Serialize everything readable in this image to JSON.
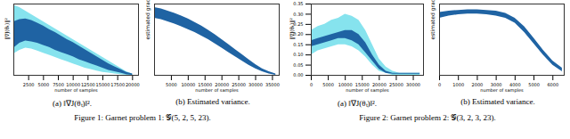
{
  "chart_data": [
    {
      "type": "line",
      "title": "(a) ‖∇J(θₜ)‖².",
      "ylabel": "‖∇J(θₜ)‖²",
      "xlabel": "number of samples",
      "x": [
        0,
        1000,
        2000,
        3000,
        4000,
        5000,
        6000,
        7000,
        8000,
        9000,
        10000,
        11000,
        12000,
        13000,
        14000,
        15000,
        16000,
        17000,
        18000,
        19000,
        20000
      ],
      "xlim": [
        0,
        21000
      ],
      "xticks": [
        2500,
        5000,
        7500,
        10000,
        12500,
        15000,
        17500,
        20000
      ],
      "ylim": [
        0,
        1
      ],
      "tick_labels": "x",
      "series": [
        {
          "type": "area",
          "color": "#86e3ee",
          "upper": [
            0.98,
            0.95,
            0.9,
            0.85,
            0.8,
            0.75,
            0.7,
            0.65,
            0.6,
            0.55,
            0.5,
            0.45,
            0.4,
            0.35,
            0.3,
            0.25,
            0.2,
            0.15,
            0.1,
            0.05,
            0.02
          ],
          "lower": [
            0.3,
            0.35,
            0.38,
            0.37,
            0.34,
            0.31,
            0.28,
            0.25,
            0.22,
            0.19,
            0.16,
            0.13,
            0.1,
            0.08,
            0.06,
            0.04,
            0.03,
            0.02,
            0.01,
            0,
            0
          ]
        },
        {
          "type": "area",
          "color": "#1f63a3",
          "upper": [
            0.75,
            0.78,
            0.79,
            0.77,
            0.73,
            0.69,
            0.64,
            0.6,
            0.55,
            0.5,
            0.46,
            0.41,
            0.36,
            0.31,
            0.26,
            0.21,
            0.16,
            0.12,
            0.08,
            0.04,
            0.02
          ],
          "lower": [
            0.38,
            0.45,
            0.48,
            0.47,
            0.45,
            0.42,
            0.39,
            0.35,
            0.32,
            0.29,
            0.26,
            0.22,
            0.19,
            0.16,
            0.13,
            0.1,
            0.07,
            0.05,
            0.03,
            0.01,
            0
          ]
        }
      ]
    },
    {
      "type": "line",
      "title": "(b) Estimated variance.",
      "ylabel": "estimated gradient variance",
      "xlabel": "number of samples",
      "x": [
        0,
        2000,
        4000,
        6000,
        8000,
        10000,
        12000,
        14000,
        16000,
        18000,
        20000,
        22000,
        24000,
        26000,
        28000,
        30000,
        32000,
        34000,
        36000
      ],
      "xlim": [
        0,
        37000
      ],
      "xticks": [
        5000,
        10000,
        15000,
        20000,
        25000,
        30000,
        35000
      ],
      "ylim": [
        0,
        1
      ],
      "tick_labels": "x",
      "series": [
        {
          "type": "area",
          "color": "#1f63a3",
          "upper": [
            0.95,
            0.93,
            0.9,
            0.87,
            0.83,
            0.79,
            0.74,
            0.69,
            0.63,
            0.57,
            0.5,
            0.43,
            0.36,
            0.29,
            0.22,
            0.15,
            0.09,
            0.05,
            0.02
          ],
          "lower": [
            0.8,
            0.78,
            0.75,
            0.72,
            0.68,
            0.64,
            0.6,
            0.55,
            0.5,
            0.44,
            0.38,
            0.32,
            0.26,
            0.2,
            0.14,
            0.09,
            0.05,
            0.02,
            0
          ]
        }
      ]
    },
    {
      "type": "line",
      "title": "(a) ‖∇J(θₜ)‖².",
      "ylabel": "‖∇J(θₜ)‖²",
      "xlabel": "number of samples",
      "x": [
        0,
        2000,
        4000,
        6000,
        8000,
        10000,
        12000,
        14000,
        16000,
        18000,
        20000,
        22000,
        24000,
        26000,
        28000,
        30000,
        32000
      ],
      "xlim": [
        0,
        33000
      ],
      "xticks": [
        0,
        5000,
        10000,
        15000,
        20000,
        25000,
        30000
      ],
      "ylim": [
        0,
        0.35
      ],
      "yticks": [
        {
          "value": 0,
          "label": "0.00"
        },
        0.05,
        {
          "value": 0.1,
          "label": "0.10"
        },
        0.15,
        {
          "value": 0.2,
          "label": "0.20"
        },
        0.25,
        {
          "value": 0.3,
          "label": "0.30"
        },
        0.35
      ],
      "series": [
        {
          "type": "area",
          "color": "#86e3ee",
          "upper": [
            0.22,
            0.24,
            0.25,
            0.27,
            0.28,
            0.3,
            0.29,
            0.27,
            0.22,
            0.15,
            0.08,
            0.04,
            0.02,
            0.01,
            0.01,
            0.01,
            0.01
          ],
          "lower": [
            0.1,
            0.12,
            0.13,
            0.14,
            0.15,
            0.15,
            0.14,
            0.12,
            0.09,
            0.05,
            0.02,
            0.01,
            0,
            0,
            0,
            0,
            0
          ]
        },
        {
          "type": "area",
          "color": "#1f63a3",
          "upper": [
            0.17,
            0.18,
            0.19,
            0.2,
            0.21,
            0.22,
            0.22,
            0.2,
            0.16,
            0.1,
            0.05,
            0.02,
            0.01,
            0.01,
            0.01,
            0.01,
            0.01
          ],
          "lower": [
            0.14,
            0.15,
            0.16,
            0.17,
            0.18,
            0.18,
            0.17,
            0.15,
            0.11,
            0.07,
            0.03,
            0.01,
            0.005,
            0.005,
            0.005,
            0.005,
            0.005
          ]
        }
      ]
    },
    {
      "type": "line",
      "title": "(b) Estimated variance.",
      "ylabel": "estimated gradient variance",
      "xlabel": "number of samples",
      "x": [
        0,
        500,
        1000,
        1500,
        2000,
        2500,
        3000,
        3500,
        4000,
        4500,
        5000,
        5500,
        6000,
        6500
      ],
      "xlim": [
        0,
        6600
      ],
      "xticks": [
        0,
        1000,
        2000,
        3000,
        4000,
        5000,
        6000
      ],
      "ylim": [
        0,
        1
      ],
      "tick_labels": "x",
      "series": [
        {
          "type": "area",
          "color": "#1f63a3",
          "upper": [
            0.88,
            0.9,
            0.91,
            0.92,
            0.92,
            0.91,
            0.9,
            0.87,
            0.8,
            0.68,
            0.52,
            0.35,
            0.2,
            0.1
          ],
          "lower": [
            0.8,
            0.83,
            0.85,
            0.86,
            0.86,
            0.85,
            0.83,
            0.8,
            0.73,
            0.6,
            0.44,
            0.28,
            0.14,
            0.05
          ]
        }
      ]
    }
  ],
  "captions": [
    "Figure 1: Garnet problem 1: 𝒢(5, 2, 5, 23).",
    "Figure 2: Garnet problem 2: 𝒢(3, 2, 3, 23)."
  ]
}
